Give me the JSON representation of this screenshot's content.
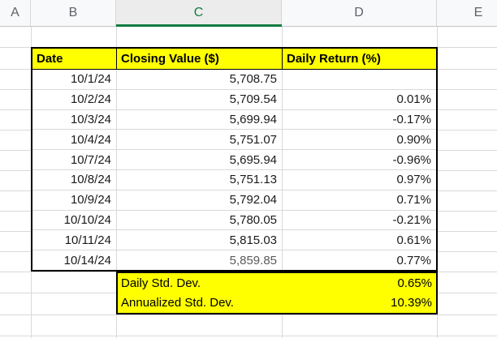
{
  "sheet": {
    "column_headers": [
      "A",
      "B",
      "C",
      "D",
      "E"
    ],
    "selected_column": "C"
  },
  "table": {
    "headers": [
      "Date",
      "Closing Value ($)",
      "Daily Return (%)"
    ],
    "rows": [
      {
        "date": "10/1/24",
        "close": "5,708.75",
        "ret": ""
      },
      {
        "date": "10/2/24",
        "close": "5,709.54",
        "ret": "0.01%"
      },
      {
        "date": "10/3/24",
        "close": "5,699.94",
        "ret": "-0.17%"
      },
      {
        "date": "10/4/24",
        "close": "5,751.07",
        "ret": "0.90%"
      },
      {
        "date": "10/7/24",
        "close": "5,695.94",
        "ret": "-0.96%"
      },
      {
        "date": "10/8/24",
        "close": "5,751.13",
        "ret": "0.97%"
      },
      {
        "date": "10/9/24",
        "close": "5,792.04",
        "ret": "0.71%"
      },
      {
        "date": "10/10/24",
        "close": "5,780.05",
        "ret": "-0.21%"
      },
      {
        "date": "10/11/24",
        "close": "5,815.03",
        "ret": "0.61%"
      },
      {
        "date": "10/14/24",
        "close": "5,859.85",
        "ret": "0.77%"
      }
    ]
  },
  "stats": {
    "rows": [
      {
        "label": "Daily Std. Dev.",
        "value": "0.65%"
      },
      {
        "label": "Annualized Std. Dev.",
        "value": "10.39%"
      }
    ]
  },
  "colors": {
    "highlight_fill": "#ffff00",
    "selected_column_accent": "#107c41",
    "gridline": "#d9d9d9",
    "table_border": "#000000",
    "muted_value_text": "#595959"
  }
}
